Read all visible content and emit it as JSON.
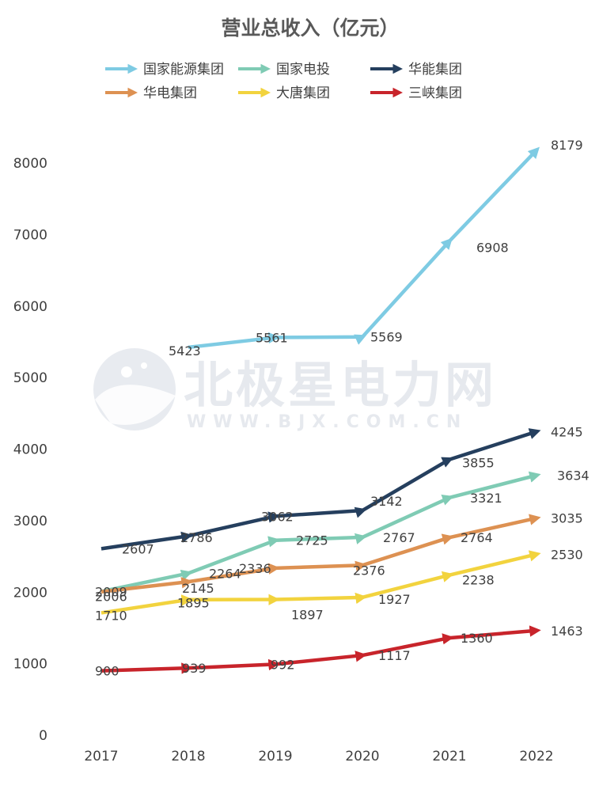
{
  "chart_data": {
    "type": "line",
    "title": "营业总收入（亿元）",
    "x": [
      "2017",
      "2018",
      "2019",
      "2020",
      "2021",
      "2022"
    ],
    "ylim": [
      0,
      8000
    ],
    "yticks": [
      0,
      1000,
      2000,
      3000,
      4000,
      5000,
      6000,
      7000,
      8000
    ],
    "grid": false,
    "legend_position": "top",
    "series": [
      {
        "name": "国家能源集团",
        "color": "#7ecbe3",
        "values": [
          null,
          5423,
          5561,
          5569,
          6908,
          8179
        ]
      },
      {
        "name": "国家电投",
        "color": "#7fcbb4",
        "values": [
          2009,
          2264,
          2725,
          2767,
          3321,
          3634
        ]
      },
      {
        "name": "华能集团",
        "color": "#253f5e",
        "values": [
          2607,
          2786,
          3062,
          3142,
          3855,
          4245
        ]
      },
      {
        "name": "华电集团",
        "color": "#dd9152",
        "values": [
          2006,
          2145,
          2336,
          2376,
          2764,
          3035
        ]
      },
      {
        "name": "大唐集团",
        "color": "#f2d33e",
        "values": [
          1710,
          1895,
          1897,
          1927,
          2238,
          2530
        ]
      },
      {
        "name": "三峡集团",
        "color": "#c8242b",
        "values": [
          900,
          939,
          992,
          1117,
          1360,
          1463
        ]
      }
    ]
  },
  "watermark": {
    "main": "北极星电力网",
    "sub": "WWW.BJX.COM.CN"
  }
}
